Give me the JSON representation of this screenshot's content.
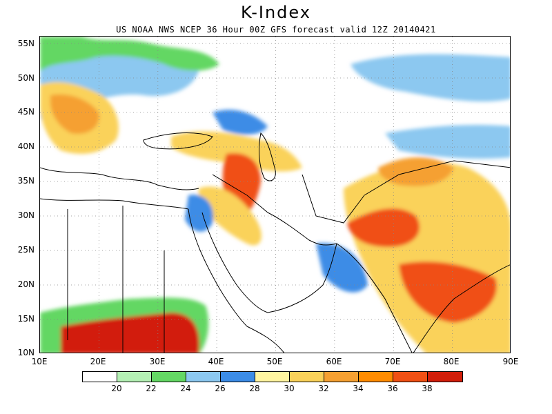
{
  "header": {
    "title": "K-Index",
    "subtitle": "US NOAA NWS NCEP 36 Hour 00Z GFS forecast valid 12Z 20140421"
  },
  "axes": {
    "lat_labels": [
      "55N",
      "50N",
      "45N",
      "40N",
      "35N",
      "30N",
      "25N",
      "20N",
      "15N",
      "10N"
    ],
    "lon_labels": [
      "10E",
      "20E",
      "30E",
      "40E",
      "50E",
      "60E",
      "70E",
      "80E",
      "90E"
    ]
  },
  "legend": {
    "labels": [
      "20",
      "22",
      "24",
      "26",
      "28",
      "30",
      "32",
      "34",
      "36",
      "38"
    ],
    "colors": [
      "#ffffff",
      "#b4f0b4",
      "#64d764",
      "#8cc8f0",
      "#3c8ce6",
      "#fff5a0",
      "#fad25a",
      "#f5a032",
      "#ff8c00",
      "#f05014",
      "#d21e0a"
    ]
  },
  "map": {
    "region": "Europe / Middle East / South Asia",
    "lon_range": [
      10,
      90
    ],
    "lat_range": [
      10,
      56
    ],
    "grid": "dotted",
    "field": "K-Index"
  }
}
